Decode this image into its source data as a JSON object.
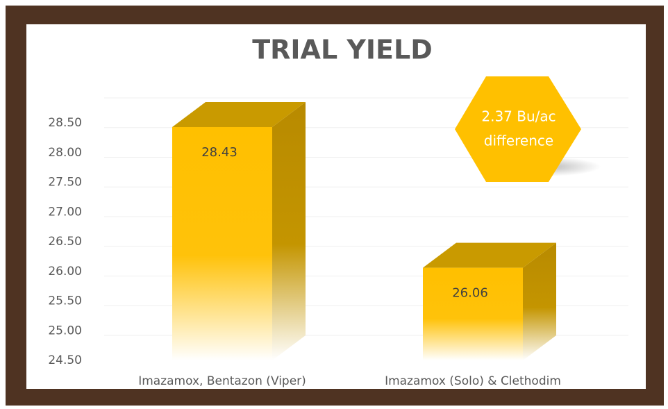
{
  "chart_data": {
    "type": "bar3d",
    "title": "TRIAL YIELD",
    "categories": [
      "Imazamox, Bentazon (Viper)",
      "Imazamox (Solo) & Clethodim"
    ],
    "values": [
      28.43,
      26.06
    ],
    "color": "#ffc000",
    "ylim": [
      24.5,
      28.5
    ],
    "yticks": [
      {
        "value": 24.5,
        "label": "24.50"
      },
      {
        "value": 25,
        "label": "25.00"
      },
      {
        "value": 25.5,
        "label": "25.50"
      },
      {
        "value": 26,
        "label": "26.00"
      },
      {
        "value": 26.5,
        "label": "26.50"
      },
      {
        "value": 27,
        "label": "27.00"
      },
      {
        "value": 27.5,
        "label": "27.50"
      },
      {
        "value": 28,
        "label": "28.00"
      },
      {
        "value": 28.5,
        "label": "28.50"
      }
    ],
    "grid": true,
    "annotation": [
      "2.37 Bu/ac",
      "difference"
    ]
  }
}
